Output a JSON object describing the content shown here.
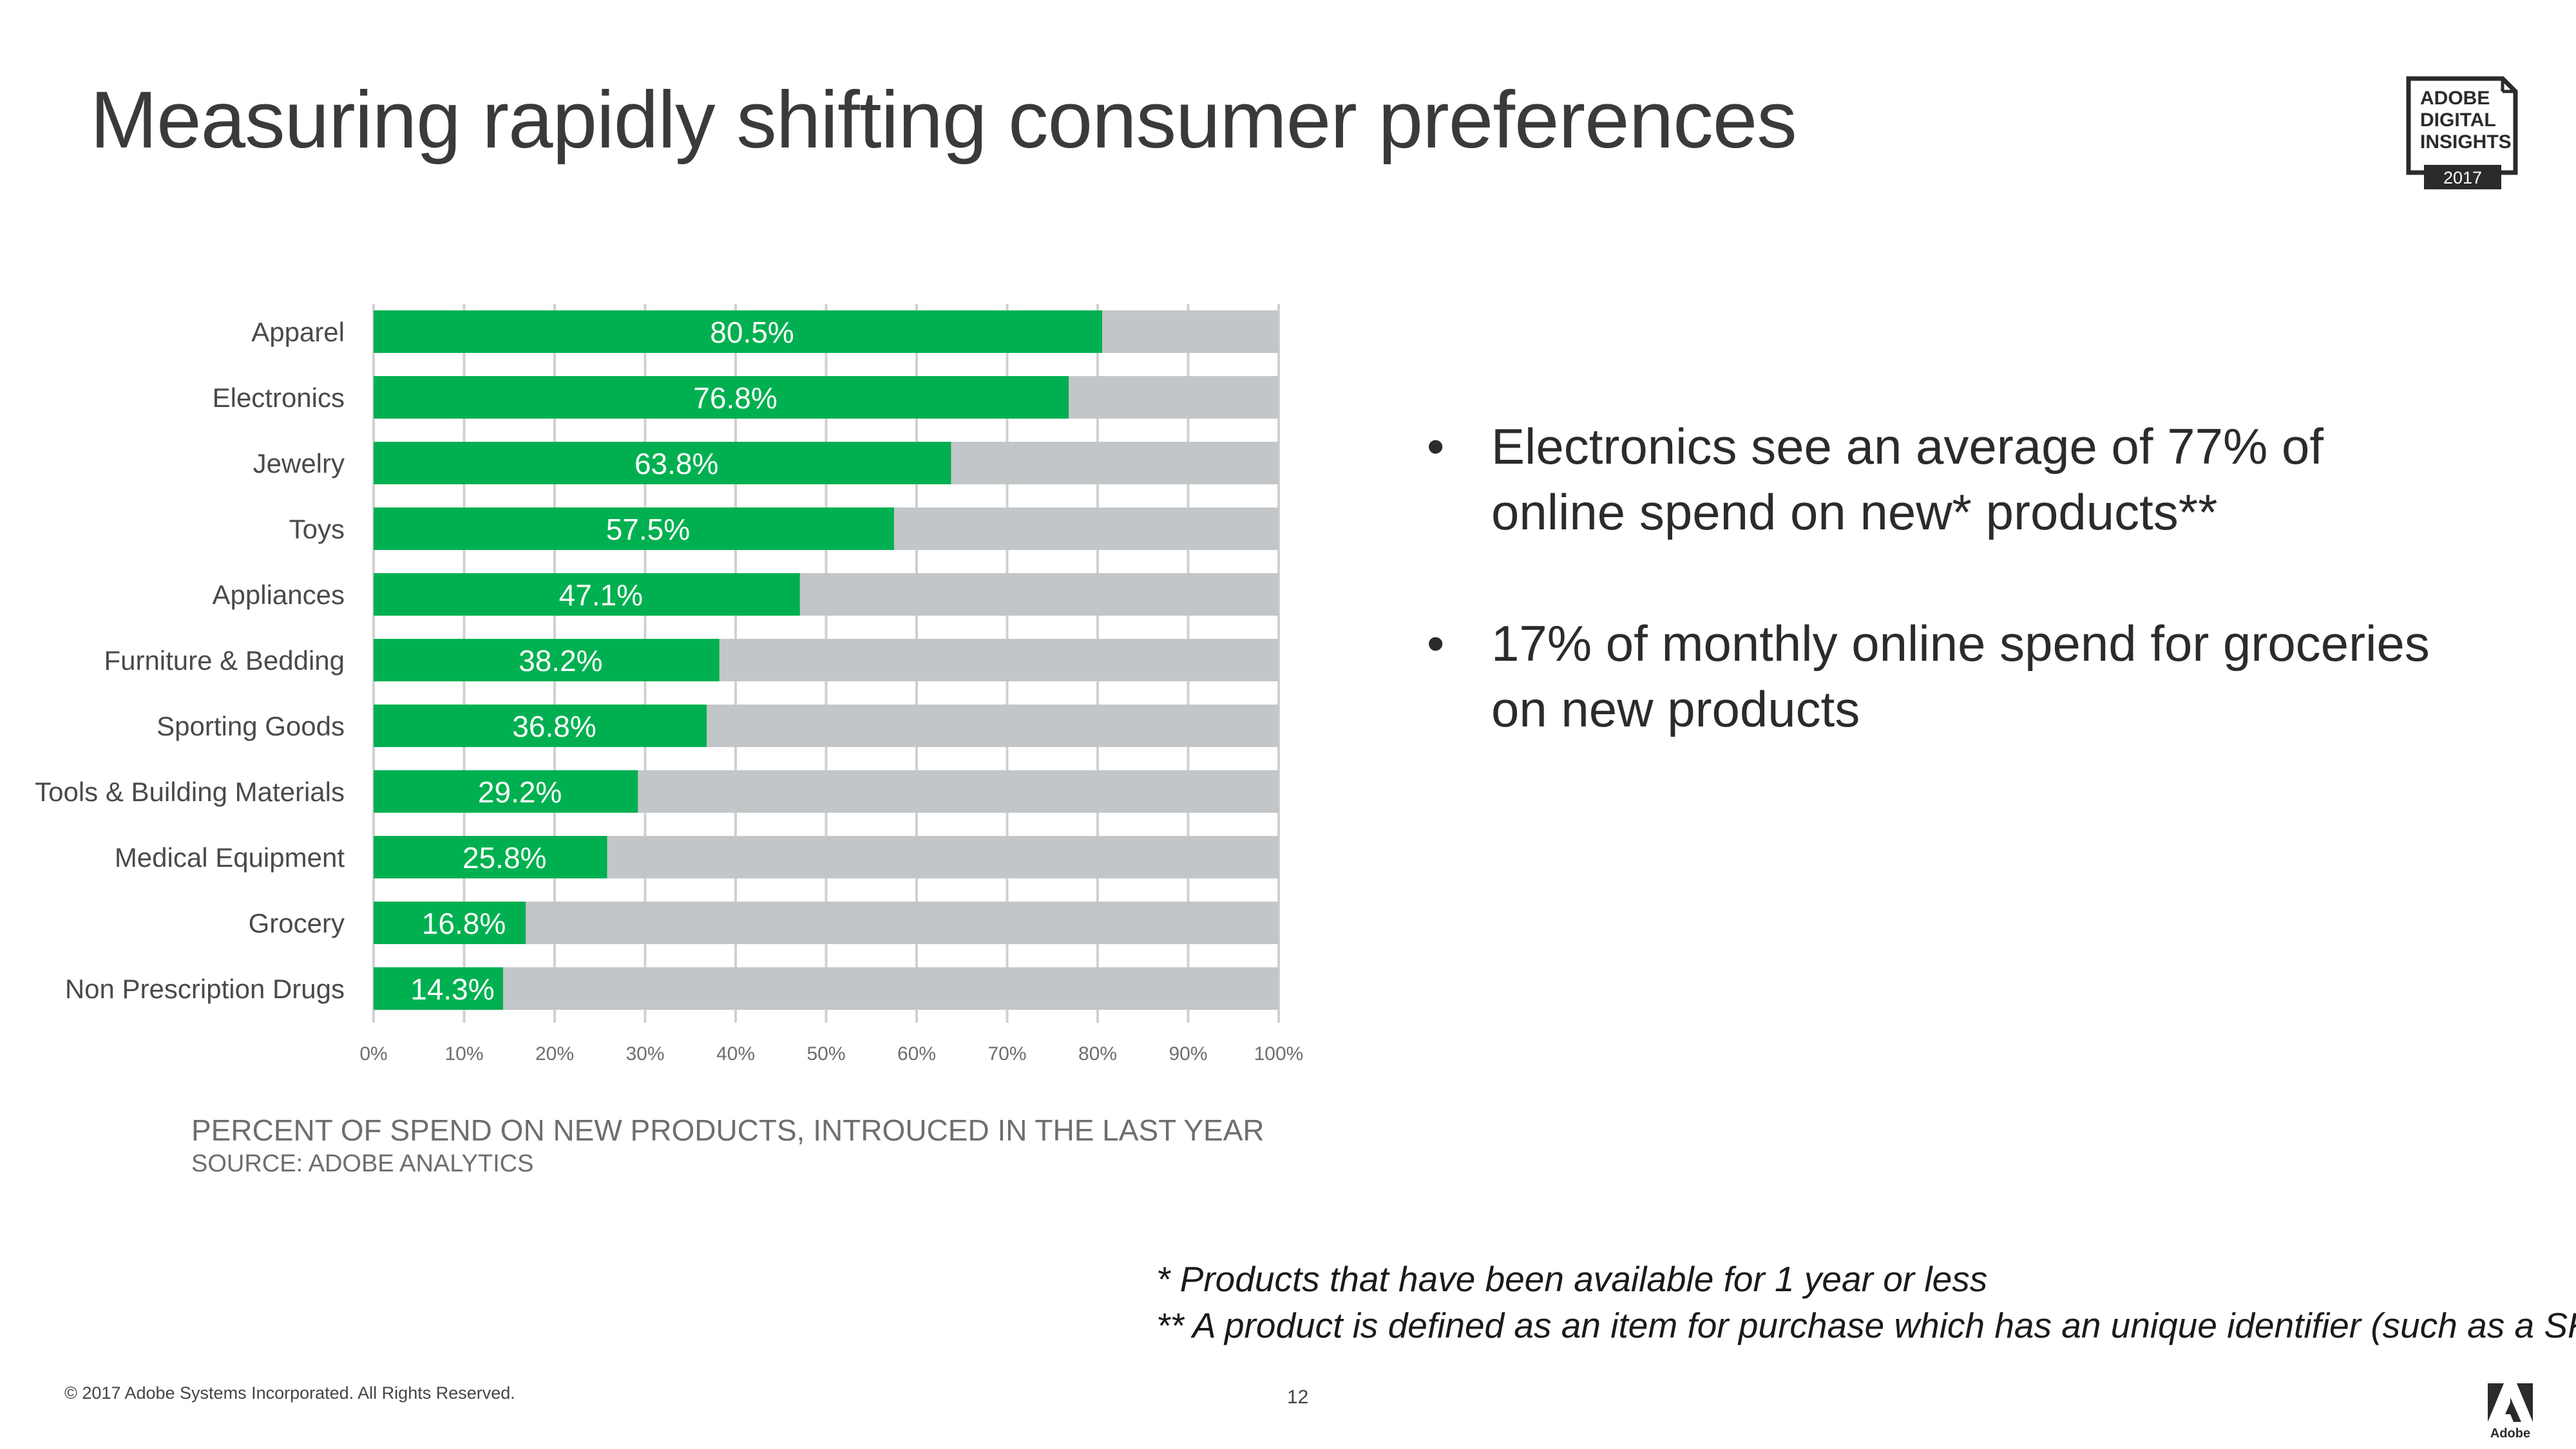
{
  "slide": {
    "title": "Measuring rapidly shifting consumer preferences",
    "badge": {
      "line1": "ADOBE",
      "line2": "DIGITAL",
      "line3": "INSIGHTS",
      "year": "2017"
    },
    "chart_caption": "PERCENT OF SPEND ON NEW PRODUCTS, INTROUCED IN THE LAST YEAR",
    "chart_source": "SOURCE: ADOBE ANALYTICS",
    "bullets": [
      {
        "marker": "•",
        "text": "Electronics see an average of 77% of online spend on new* products**"
      },
      {
        "marker": "•",
        "text": "17% of monthly online spend for groceries on new products"
      }
    ],
    "footnotes": [
      "* Products that have been available for 1 year or less",
      "** A product is defined as an item for purchase which has an unique identifier (such as a SKU)"
    ],
    "copyright": "© 2017 Adobe Systems Incorporated.  All Rights Reserved.",
    "page_number": "12",
    "logo_text": "Adobe"
  },
  "colors": {
    "bar": "#00b050",
    "track": "#c3c6c9",
    "grid": "#d0d0d0"
  },
  "chart_data": {
    "type": "bar",
    "orientation": "horizontal",
    "stacked_remainder_to": 100,
    "categories": [
      "Apparel",
      "Electronics",
      "Jewelry",
      "Toys",
      "Appliances",
      "Furniture & Bedding",
      "Sporting Goods",
      "Tools & Building Materials",
      "Medical Equipment",
      "Grocery",
      "Non Prescription Drugs"
    ],
    "values": [
      80.5,
      76.8,
      63.8,
      57.5,
      47.1,
      38.2,
      36.8,
      29.2,
      25.8,
      16.8,
      14.3
    ],
    "value_labels": [
      "80.5%",
      "76.8%",
      "63.8%",
      "57.5%",
      "47.1%",
      "38.2%",
      "36.8%",
      "29.2%",
      "25.8%",
      "16.8%",
      "14.3%"
    ],
    "x_ticks": [
      "0%",
      "10%",
      "20%",
      "30%",
      "40%",
      "50%",
      "60%",
      "70%",
      "80%",
      "90%",
      "100%"
    ],
    "xlim": [
      0,
      100
    ],
    "grid": true,
    "legend": "none"
  }
}
